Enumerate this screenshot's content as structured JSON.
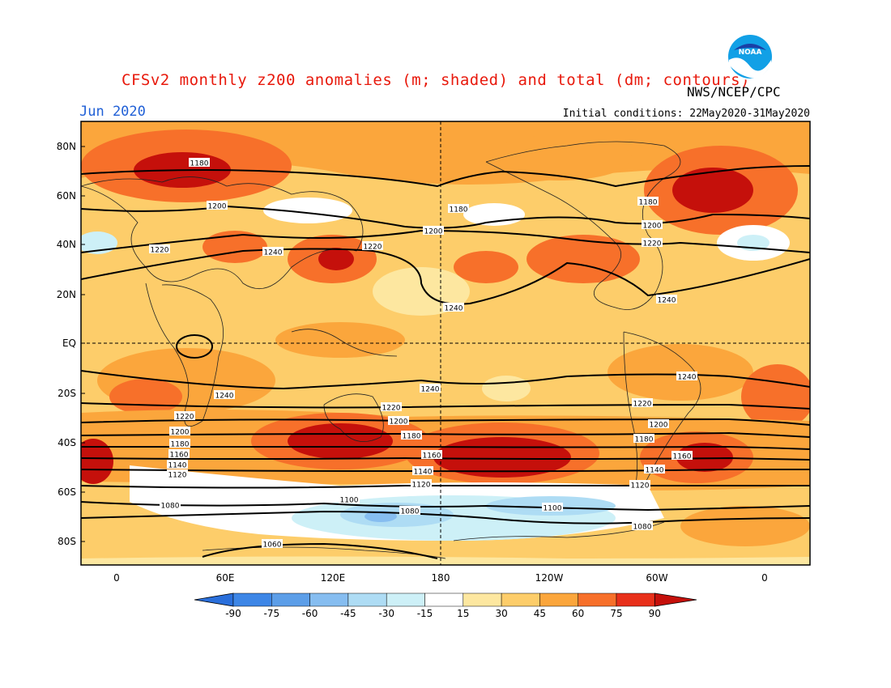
{
  "header": {
    "title": "CFSv2 monthly z200 anomalies (m; shaded) and total (dm; contours)",
    "agency": "NWS/NCEP/CPC",
    "month": "Jun 2020",
    "initial_conditions": "Initial conditions: 22May2020-31May2020",
    "logo_text": "NOAA"
  },
  "map": {
    "lat_labels": [
      "80N",
      "60N",
      "40N",
      "20N",
      "EQ",
      "20S",
      "40S",
      "60S",
      "80S"
    ],
    "lon_labels": [
      "0",
      "60E",
      "120E",
      "180",
      "120W",
      "60W",
      "0"
    ],
    "contour_labels": [
      "1060",
      "1080",
      "1100",
      "1120",
      "1140",
      "1160",
      "1180",
      "1200",
      "1220",
      "1240"
    ]
  },
  "colorbar": {
    "ticks": [
      "-90",
      "-75",
      "-60",
      "-45",
      "-30",
      "-15",
      "15",
      "30",
      "45",
      "60",
      "75",
      "90"
    ],
    "colors": [
      "#2a6fdb",
      "#3d86e6",
      "#5c9ee8",
      "#86bdf0",
      "#aedcf4",
      "#cdf0f7",
      "#ffffff",
      "#fde7a0",
      "#fdcd6a",
      "#fba63c",
      "#f7702a",
      "#e8301a",
      "#c5100b"
    ]
  }
}
